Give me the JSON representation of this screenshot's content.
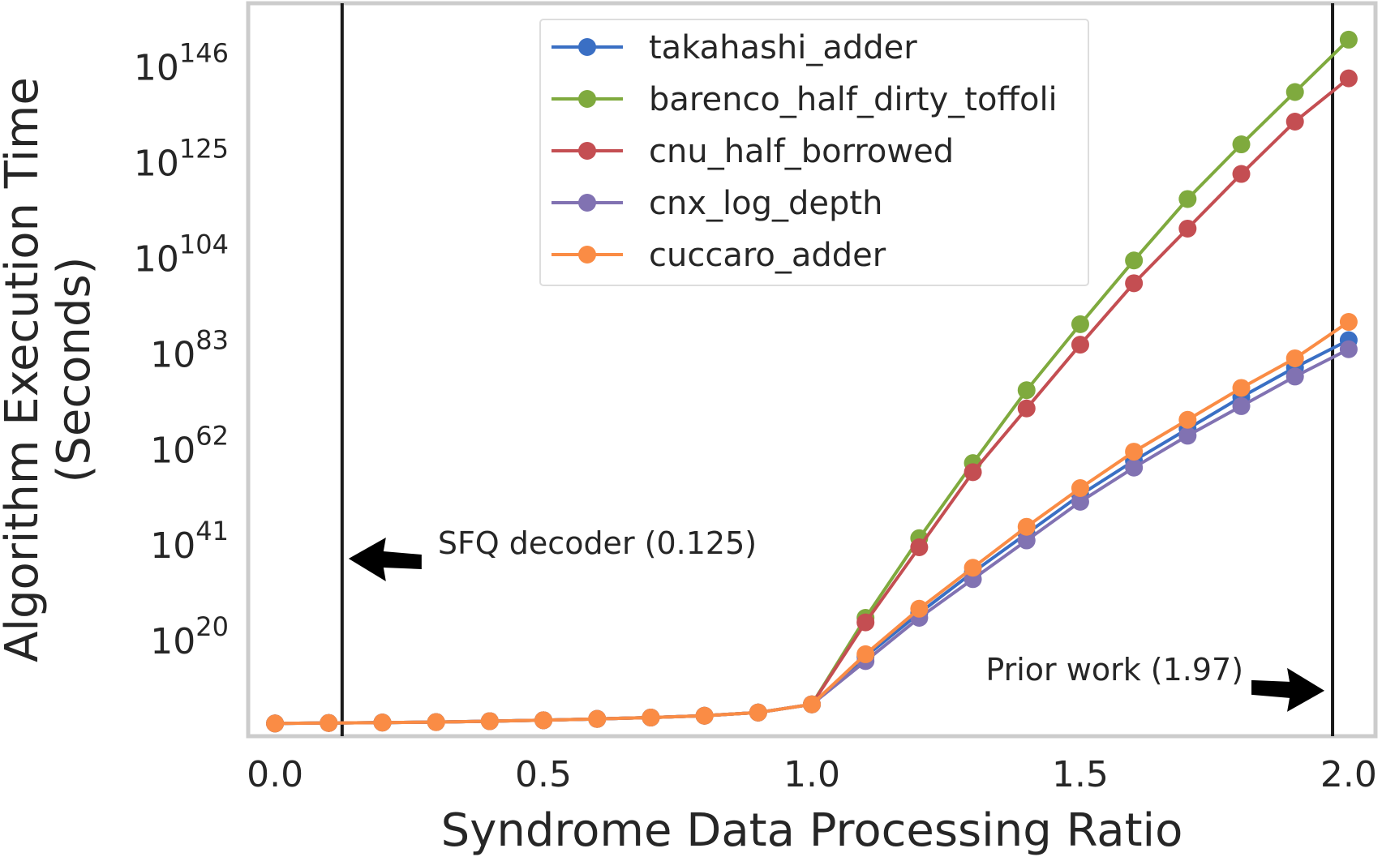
{
  "chart_data": {
    "type": "line",
    "xlabel": "Syndrome Data Processing Ratio",
    "ylabel_lines": [
      "Algorithm Execution Time",
      "(Seconds)"
    ],
    "yscale": "log10",
    "xlim": [
      -0.05,
      2.05
    ],
    "ylim_exponent": [
      -1,
      160
    ],
    "x_ticks": [
      {
        "value": 0.0,
        "label": "0.0"
      },
      {
        "value": 0.5,
        "label": "0.5"
      },
      {
        "value": 1.0,
        "label": "1.0"
      },
      {
        "value": 1.5,
        "label": "1.5"
      },
      {
        "value": 2.0,
        "label": "2.0"
      }
    ],
    "y_ticks": [
      {
        "exponent": 20,
        "base": "10",
        "sup": "20"
      },
      {
        "exponent": 41,
        "base": "10",
        "sup": "41"
      },
      {
        "exponent": 62,
        "base": "10",
        "sup": "62"
      },
      {
        "exponent": 83,
        "base": "10",
        "sup": "83"
      },
      {
        "exponent": 104,
        "base": "10",
        "sup": "104"
      },
      {
        "exponent": 125,
        "base": "10",
        "sup": "125"
      },
      {
        "exponent": 146,
        "base": "10",
        "sup": "146"
      }
    ],
    "grid": false,
    "legend_position": "top-center",
    "x": [
      0.0,
      0.1,
      0.2,
      0.3,
      0.4,
      0.5,
      0.6,
      0.7,
      0.8,
      0.9,
      1.0,
      1.1,
      1.2,
      1.3,
      1.4,
      1.5,
      1.6,
      1.7,
      1.8,
      1.9,
      2.0
    ],
    "series": [
      {
        "name": "takahashi_adder",
        "color": "#3a6fc4",
        "log10_values": [
          1.8,
          1.9,
          2.0,
          2.1,
          2.3,
          2.5,
          2.8,
          3.1,
          3.5,
          4.2,
          6.0,
          16.5,
          26.0,
          35.0,
          43.5,
          52.0,
          59.5,
          66.5,
          73.5,
          80.0,
          86.0
        ]
      },
      {
        "name": "barenco_half_dirty_toffoli",
        "color": "#7faa3e",
        "log10_values": [
          1.8,
          1.9,
          2.0,
          2.1,
          2.3,
          2.5,
          2.8,
          3.1,
          3.5,
          4.2,
          6.0,
          25.0,
          42.5,
          59.0,
          75.0,
          89.5,
          103.5,
          117.0,
          129.0,
          140.5,
          152.0
        ]
      },
      {
        "name": "cnu_half_borrowed",
        "color": "#c44e52",
        "log10_values": [
          1.8,
          1.9,
          2.0,
          2.1,
          2.3,
          2.5,
          2.8,
          3.1,
          3.5,
          4.2,
          6.0,
          24.0,
          40.5,
          57.0,
          71.0,
          85.0,
          98.5,
          110.5,
          122.5,
          134.0,
          143.5
        ]
      },
      {
        "name": "cnx_log_depth",
        "color": "#8172b2",
        "log10_values": [
          1.8,
          1.9,
          2.0,
          2.1,
          2.3,
          2.5,
          2.8,
          3.1,
          3.5,
          4.2,
          6.0,
          15.5,
          25.0,
          33.5,
          42.0,
          50.5,
          58.0,
          65.0,
          71.5,
          78.0,
          84.0
        ]
      },
      {
        "name": "cuccaro_adder",
        "color": "#fa8c45",
        "log10_values": [
          1.8,
          1.9,
          2.0,
          2.1,
          2.3,
          2.5,
          2.8,
          3.1,
          3.5,
          4.2,
          6.0,
          17.0,
          27.0,
          36.0,
          45.0,
          53.5,
          61.5,
          68.5,
          75.5,
          82.0,
          90.0
        ]
      }
    ],
    "vlines": [
      {
        "x": 0.125,
        "label": "SFQ decoder (0.125)",
        "arrow": "left",
        "label_exponent": 38
      },
      {
        "x": 1.97,
        "label": "Prior work (1.97)",
        "arrow": "right",
        "label_exponent": 9
      }
    ]
  }
}
